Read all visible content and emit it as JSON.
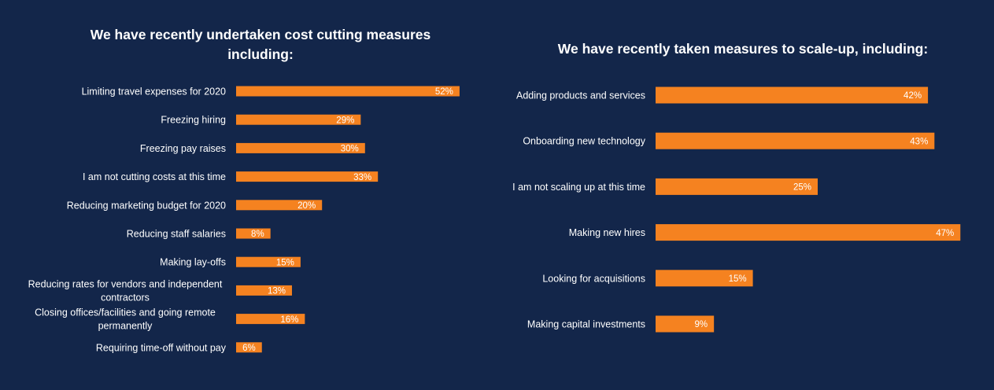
{
  "colors": {
    "background": "#13264a",
    "bar": "#f58220",
    "text": "#ffffff"
  },
  "chart_data": [
    {
      "type": "bar",
      "orientation": "horizontal",
      "title": "We have recently undertaken cost cutting measures including:",
      "title_lines": [
        "We have recently undertaken cost cutting measures",
        "including:"
      ],
      "categories": [
        "Limiting travel expenses for 2020",
        "Freezing hiring",
        "Freezing pay raises",
        "I am not cutting costs at this time",
        "Reducing marketing budget for 2020",
        "Reducing staff salaries",
        "Making lay-offs",
        "Reducing rates for vendors and independent contractors",
        "Closing offices/facilities and going remote permanently",
        "Requiring time-off without pay"
      ],
      "category_lines": [
        [
          "Limiting travel expenses for 2020"
        ],
        [
          "Freezing hiring"
        ],
        [
          "Freezing pay raises"
        ],
        [
          "I am not cutting costs at this time"
        ],
        [
          "Reducing marketing budget for 2020"
        ],
        [
          "Reducing staff salaries"
        ],
        [
          "Making lay-offs"
        ],
        [
          "Reducing rates for vendors and independent",
          "contractors"
        ],
        [
          "Closing offices/facilities and going remote",
          "permanently"
        ],
        [
          "Requiring time-off without pay"
        ]
      ],
      "values": [
        52,
        29,
        30,
        33,
        20,
        8,
        15,
        13,
        16,
        6
      ],
      "value_labels": [
        "52%",
        "29%",
        "30%",
        "33%",
        "20%",
        "8%",
        "15%",
        "13%",
        "16%",
        "6%"
      ],
      "unit": "%",
      "grid": false,
      "legend": "none"
    },
    {
      "type": "bar",
      "orientation": "horizontal",
      "title": "We have recently taken measures to scale-up, including:",
      "title_lines": [
        "We have recently taken measures to scale-up, including:"
      ],
      "categories": [
        "Adding products and services",
        "Onboarding new technology",
        "I am not scaling up at this time",
        "Making new hires",
        "Looking for acquisitions",
        "Making capital investments"
      ],
      "category_lines": [
        [
          "Adding products and services"
        ],
        [
          "Onboarding new technology"
        ],
        [
          "I am not scaling up at this time"
        ],
        [
          "Making new hires"
        ],
        [
          "Looking for acquisitions"
        ],
        [
          "Making capital investments"
        ]
      ],
      "values": [
        42,
        43,
        25,
        47,
        15,
        9
      ],
      "value_labels": [
        "42%",
        "43%",
        "25%",
        "47%",
        "15%",
        "9%"
      ],
      "unit": "%",
      "grid": false,
      "legend": "none"
    }
  ]
}
